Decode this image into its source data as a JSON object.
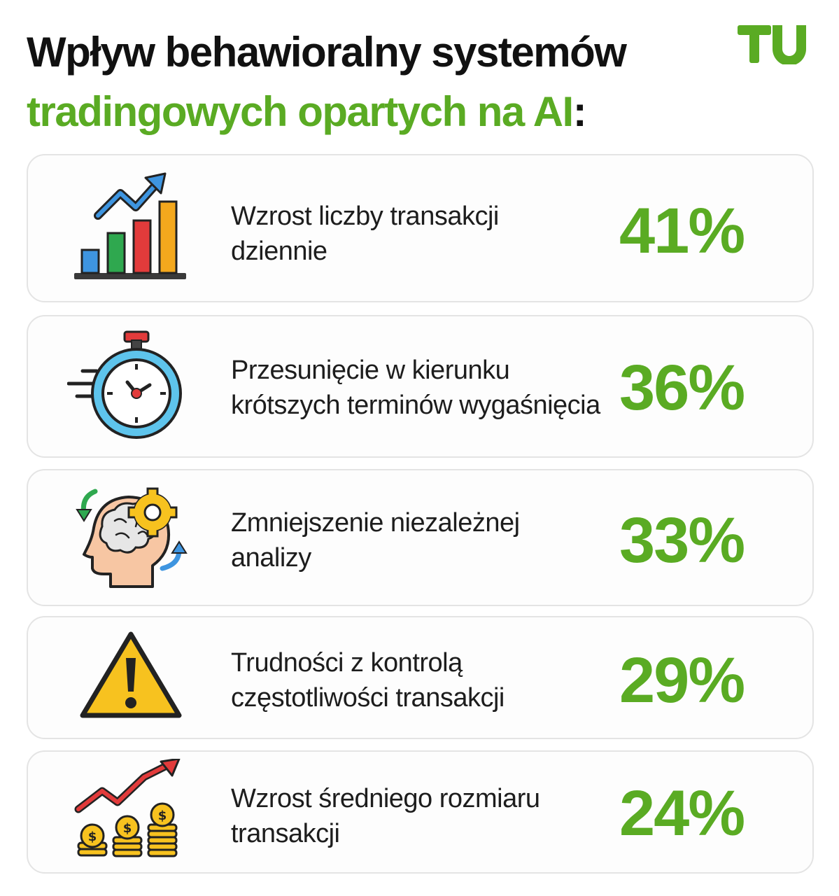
{
  "title": {
    "line1": "Wpływ behawioralny systemów",
    "line2": "tradingowych opartych na AI",
    "colon": ":"
  },
  "logo": {
    "text": "TU",
    "color": "#5aab23"
  },
  "accent_color": "#5aab23",
  "items": [
    {
      "icon": "bar-chart-growth-icon",
      "line1": "Wzrost liczby transakcji",
      "line2": "dziennie",
      "value": "41%"
    },
    {
      "icon": "stopwatch-icon",
      "line1": "Przesunięcie w kierunku",
      "line2": "krótszych terminów wygaśnięcia",
      "value": "36%"
    },
    {
      "icon": "brain-gear-head-icon",
      "line1": "Zmniejszenie niezależnej",
      "line2": "analizy",
      "value": "33%"
    },
    {
      "icon": "warning-triangle-icon",
      "line1": "Trudności z kontrolą",
      "line2": "częstotliwości transakcji",
      "value": "29%"
    },
    {
      "icon": "coins-growth-icon",
      "line1": "Wzrost średniego rozmiaru",
      "line2": "transakcji",
      "value": "24%"
    }
  ]
}
